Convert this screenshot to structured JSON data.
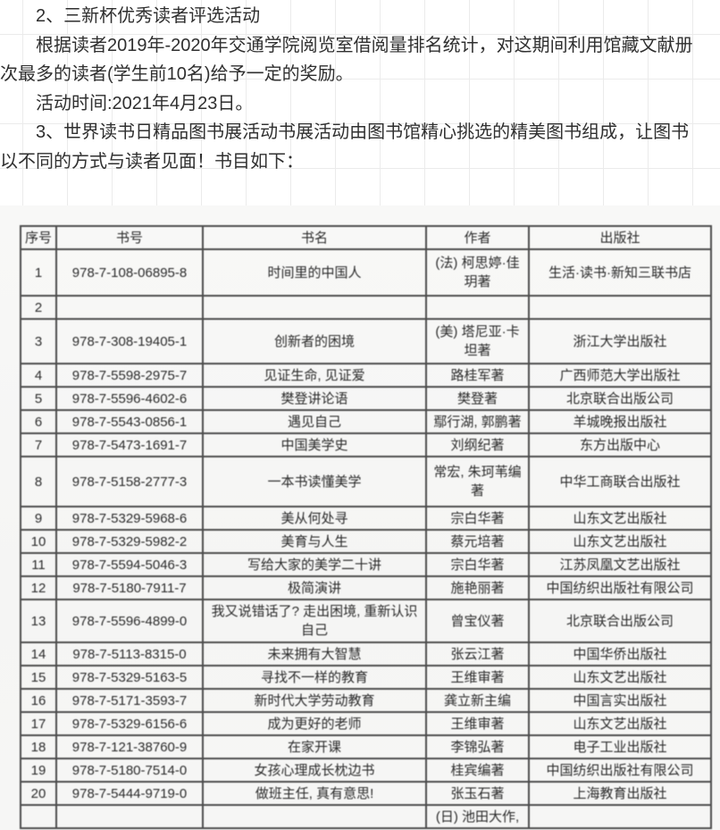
{
  "intro": {
    "paragraphs": [
      "2、三新杯优秀读者评选活动",
      "根据读者2019年-2020年交通学院阅览室借阅量排名统计，对这期间利用馆藏文献册次最多的读者(学生前10名)给予一定的奖励。",
      "活动时间:2021年4月23日。",
      "3、世界读书日精品图书展活动书展活动由图书馆精心挑选的精美图书组成，让图书以不同的方式与读者见面！书目如下："
    ]
  },
  "table": {
    "headers": [
      "序号",
      "书号",
      "书名",
      "作者",
      "出版社"
    ],
    "rows": [
      [
        "1",
        "978-7-108-06895-8",
        "时间里的中国人",
        "(法) 柯思婷·佳玥著",
        "生活·读书·新知三联书店"
      ],
      [
        "2",
        "",
        "",
        "",
        ""
      ],
      [
        "3",
        "978-7-308-19405-1",
        "创新者的困境",
        "(美) 塔尼亚·卡坦著",
        "浙江大学出版社"
      ],
      [
        "4",
        "978-7-5598-2975-7",
        "见证生命, 见证爱",
        "路桂军著",
        "广西师范大学出版社"
      ],
      [
        "5",
        "978-7-5596-4602-6",
        "樊登讲论语",
        "樊登著",
        "北京联合出版公司"
      ],
      [
        "6",
        "978-7-5543-0856-1",
        "遇见自己",
        "鄢行湖, 郭鹏著",
        "羊城晚报出版社"
      ],
      [
        "7",
        "978-7-5473-1691-7",
        "中国美学史",
        "刘纲纪著",
        "东方出版中心"
      ],
      [
        "8",
        "978-7-5158-2777-3",
        "一本书读懂美学",
        "常宏, 朱珂苇编著",
        "中华工商联合出版社"
      ],
      [
        "9",
        "978-7-5329-5968-6",
        "美从何处寻",
        "宗白华著",
        "山东文艺出版社"
      ],
      [
        "10",
        "978-7-5329-5982-2",
        "美育与人生",
        "蔡元培著",
        "山东文艺出版社"
      ],
      [
        "11",
        "978-7-5594-5046-3",
        "写给大家的美学二十讲",
        "宗白华著",
        "江苏凤凰文艺出版社"
      ],
      [
        "12",
        "978-7-5180-7911-7",
        "极简演讲",
        "施艳丽著",
        "中国纺织出版社有限公司"
      ],
      [
        "13",
        "978-7-5596-4899-0",
        "我又说错话了? 走出困境, 重新认识自己",
        "曾宝仪著",
        "北京联合出版公司"
      ],
      [
        "14",
        "978-7-5113-8315-0",
        "未来拥有大智慧",
        "张云江著",
        "中国华侨出版社"
      ],
      [
        "15",
        "978-7-5329-5163-5",
        "寻找不一样的教育",
        "王维审著",
        "山东文艺出版社"
      ],
      [
        "16",
        "978-7-5171-3593-7",
        "新时代大学劳动教育",
        "龚立新主编",
        "中国言实出版社"
      ],
      [
        "17",
        "978-7-5329-6156-6",
        "成为更好的老师",
        "王维审著",
        "山东文艺出版社"
      ],
      [
        "18",
        "978-7-121-38760-9",
        "在家开课",
        "李锦弘著",
        "电子工业出版社"
      ],
      [
        "19",
        "978-7-5180-7514-0",
        "女孩心理成长枕边书",
        "桂宾编著",
        "中国纺织出版社有限公司"
      ],
      [
        "20",
        "978-7-5444-9719-0",
        "做班主任, 真有意思!",
        "张玉石著",
        "上海教育出版社"
      ],
      [
        "",
        "",
        "",
        "(日) 池田大作,",
        ""
      ]
    ]
  }
}
